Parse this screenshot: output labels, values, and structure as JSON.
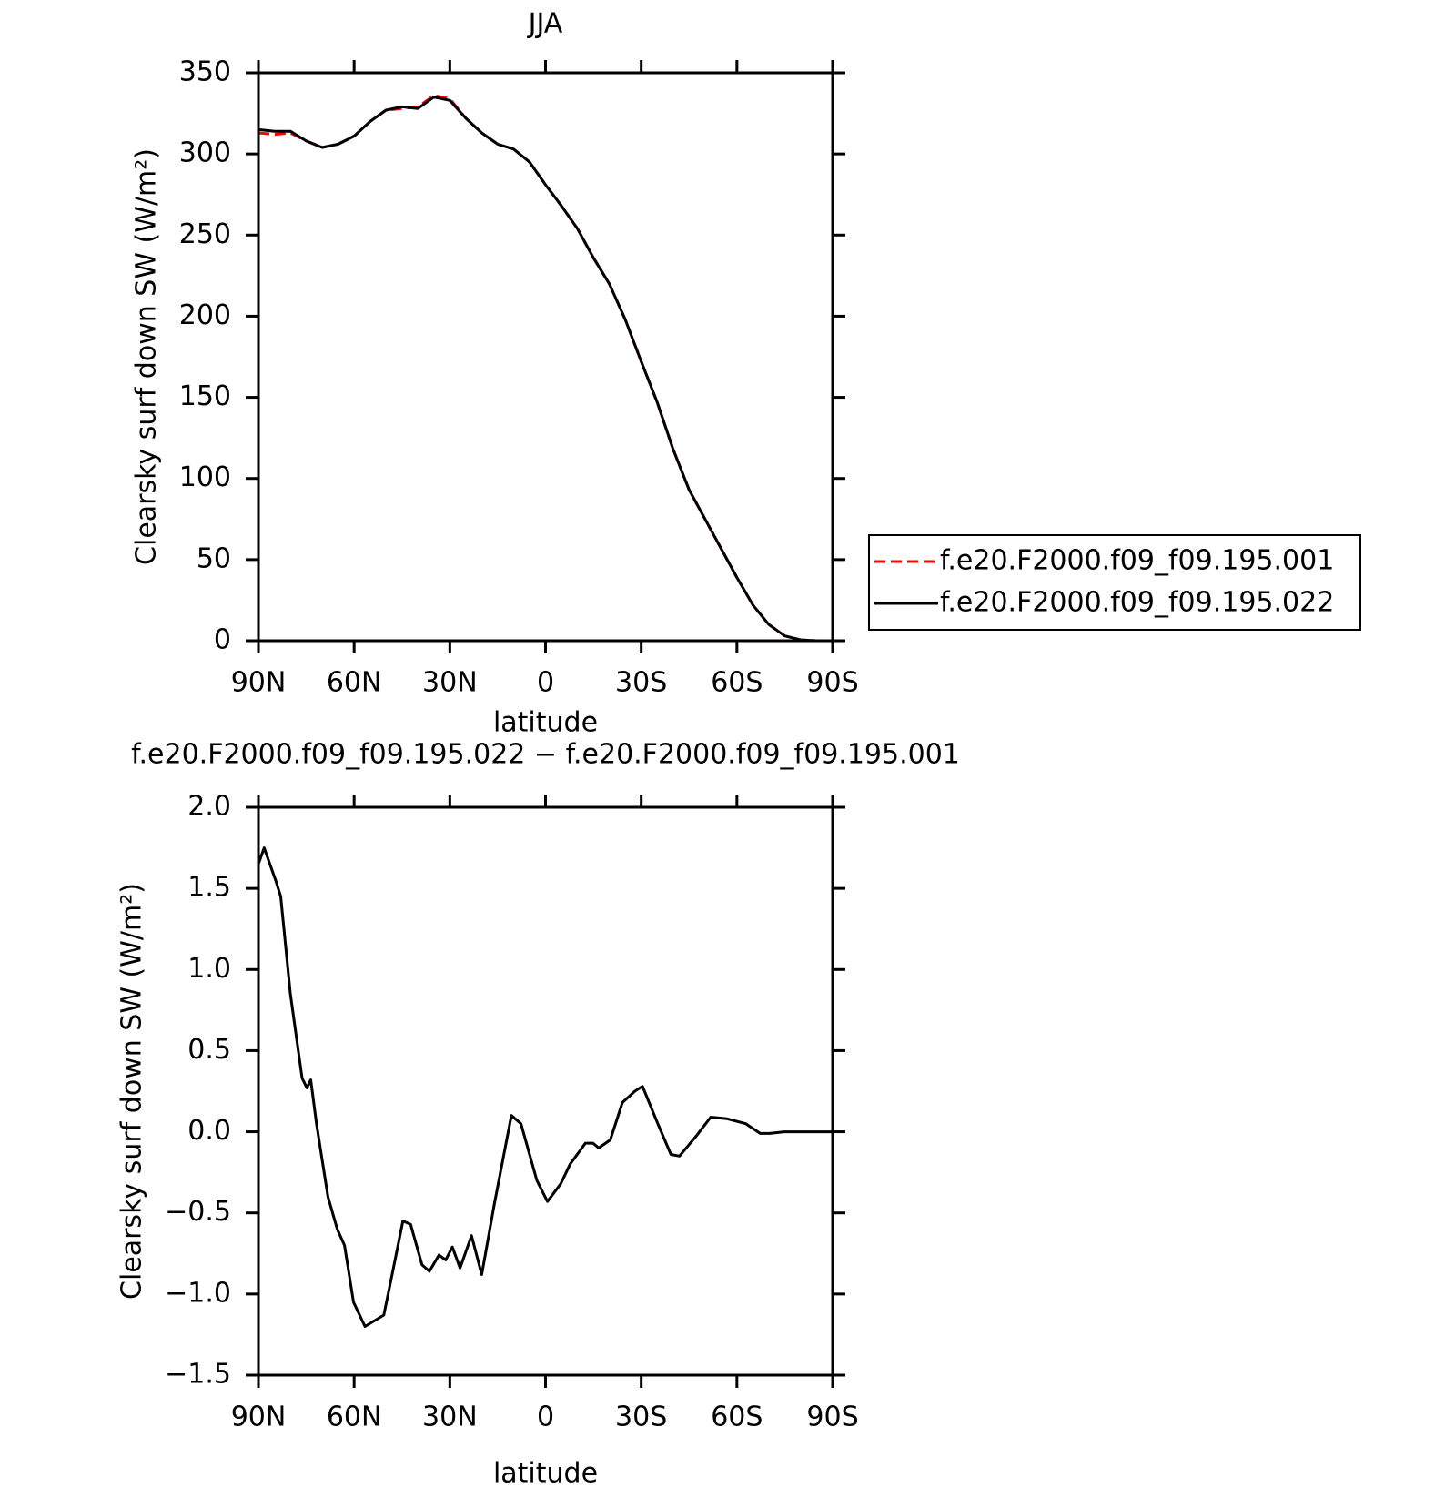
{
  "chart_data": [
    {
      "type": "line",
      "title": "JJA",
      "xlabel": "latitude",
      "ylabel": "Clearsky surf down SW (W/m²)",
      "x": [
        90,
        85,
        80,
        75,
        70,
        65,
        60,
        55,
        50,
        45,
        40,
        35,
        30,
        25,
        20,
        15,
        10,
        5,
        0,
        -5,
        -10,
        -15,
        -20,
        -25,
        -30,
        -35,
        -40,
        -45,
        -50,
        -55,
        -60,
        -65,
        -70,
        -75,
        -80,
        -85,
        -90
      ],
      "series": [
        {
          "name": "f.e20.F2000.f09_f09.195.001",
          "color": "#ff0000",
          "dash": true,
          "values": [
            313,
            312,
            313,
            308,
            304,
            306,
            311,
            320,
            327,
            328,
            329,
            336,
            334,
            322,
            313,
            306,
            303,
            295,
            281,
            268,
            254,
            236,
            220,
            198,
            172,
            147,
            118,
            93,
            75,
            57,
            39,
            22,
            10,
            3,
            0.5,
            0,
            0
          ]
        },
        {
          "name": "f.e20.F2000.f09_f09.195.022",
          "color": "#000000",
          "dash": false,
          "values": [
            315,
            314,
            314,
            308,
            304,
            306,
            311,
            320,
            327,
            329,
            328,
            335,
            333,
            322,
            313,
            306,
            303,
            295,
            281,
            268,
            254,
            236,
            220,
            198,
            172,
            147,
            118,
            93,
            75,
            57,
            39,
            22,
            10,
            3,
            0.5,
            0,
            0
          ]
        }
      ],
      "xlim": [
        90,
        -90
      ],
      "xticks": [
        {
          "value": 90,
          "label": "90N"
        },
        {
          "value": 60,
          "label": "60N"
        },
        {
          "value": 30,
          "label": "30N"
        },
        0,
        {
          "value": -30,
          "label": "30S"
        },
        {
          "value": -60,
          "label": "60S"
        },
        {
          "value": -90,
          "label": "90S"
        }
      ],
      "ylim": [
        0,
        350
      ],
      "yticks": [
        0,
        50,
        100,
        150,
        200,
        250,
        300,
        350
      ],
      "legend": "right"
    },
    {
      "type": "line",
      "title": "f.e20.F2000.f09_f09.195.022 − f.e20.F2000.f09_f09.195.001",
      "xlabel": "latitude",
      "ylabel": "Clearsky surf down SW (W/m²)",
      "x": [
        90,
        88.2,
        84.6,
        83,
        80,
        76.3,
        74.8,
        73.6,
        71.8,
        68.2,
        65.3,
        63,
        60.2,
        56.6,
        52.4,
        50.7,
        48.3,
        44.7,
        42.3,
        38.7,
        36.4,
        33.4,
        31.3,
        29.2,
        26.8,
        23.2,
        20,
        16.1,
        10.7,
        7.7,
        2.7,
        -0.6,
        -4.8,
        -7.7,
        -12.5,
        -14.9,
        -16.7,
        -20.3,
        -24.1,
        -28,
        -30.4,
        -35.2,
        -39.3,
        -42,
        -47.1,
        -51.8,
        -56.9,
        -62.8,
        -67.3,
        -70.3,
        -74.8,
        -90
      ],
      "series": [
        {
          "color": "#000000",
          "dash": false,
          "values": [
            1.65,
            1.75,
            1.55,
            1.45,
            0.85,
            0.33,
            0.27,
            0.32,
            0.05,
            -0.4,
            -0.6,
            -0.7,
            -1.05,
            -1.2,
            -1.15,
            -1.13,
            -0.9,
            -0.55,
            -0.57,
            -0.82,
            -0.86,
            -0.76,
            -0.79,
            -0.71,
            -0.84,
            -0.64,
            -0.88,
            -0.45,
            0.1,
            0.05,
            -0.3,
            -0.43,
            -0.32,
            -0.2,
            -0.07,
            -0.07,
            -0.1,
            -0.05,
            0.18,
            0.25,
            0.28,
            0.05,
            -0.14,
            -0.15,
            -0.03,
            0.09,
            0.08,
            0.05,
            -0.01,
            -0.01,
            0,
            0
          ]
        }
      ],
      "xlim": [
        90,
        -90
      ],
      "xticks": [
        {
          "value": 90,
          "label": "90N"
        },
        {
          "value": 60,
          "label": "60N"
        },
        {
          "value": 30,
          "label": "30N"
        },
        0,
        {
          "value": -30,
          "label": "30S"
        },
        {
          "value": -60,
          "label": "60S"
        },
        {
          "value": -90,
          "label": "90S"
        }
      ],
      "ylim": [
        -1.5,
        2.0
      ],
      "yticks": [
        {
          "value": -1.5,
          "label": "−1.5"
        },
        {
          "value": -1.0,
          "label": "−1.0"
        },
        {
          "value": -0.5,
          "label": "−0.5"
        },
        {
          "value": 0.0,
          "label": "0.0"
        },
        0.5,
        {
          "value": 1.0,
          "label": "1.0"
        },
        1.5,
        {
          "value": 2.0,
          "label": "2.0"
        }
      ]
    }
  ]
}
